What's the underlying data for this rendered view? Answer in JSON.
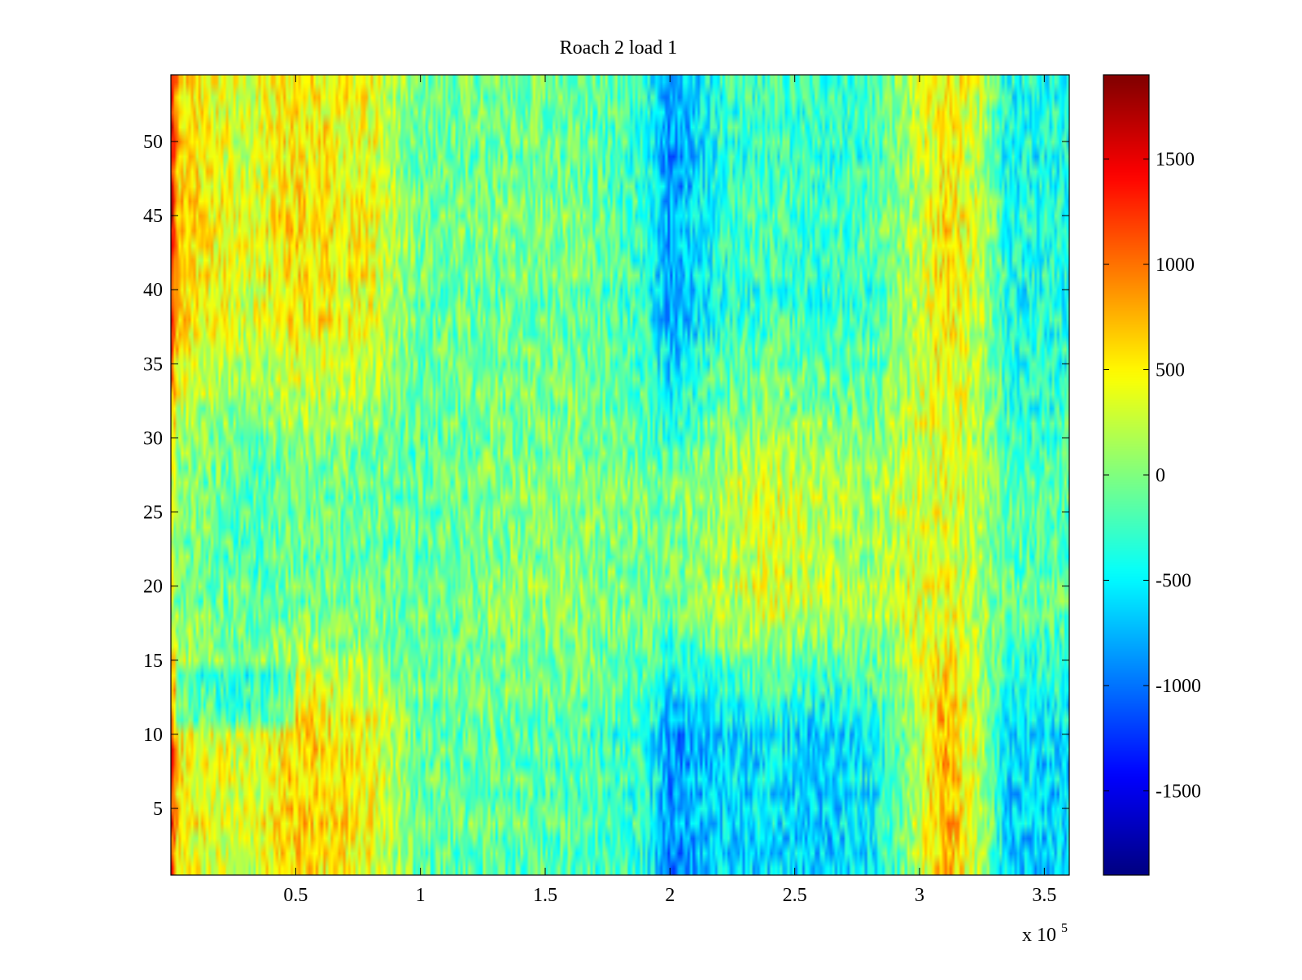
{
  "chart_data": {
    "type": "heatmap",
    "title": "Roach 2 load 1",
    "xlabel": "",
    "ylabel": "",
    "x_multiplier_label": "x 10",
    "x_multiplier_exponent": "5",
    "xlim": [
      0,
      3.6
    ],
    "ylim": [
      0.5,
      54.5
    ],
    "n_rows": 54,
    "x_ticks": [
      {
        "value": 0.5,
        "label": "0.5"
      },
      {
        "value": 1,
        "label": "1"
      },
      {
        "value": 1.5,
        "label": "1.5"
      },
      {
        "value": 2,
        "label": "2"
      },
      {
        "value": 2.5,
        "label": "2.5"
      },
      {
        "value": 3,
        "label": "3"
      },
      {
        "value": 3.5,
        "label": "3.5"
      }
    ],
    "y_ticks": [
      {
        "value": 5,
        "label": "5"
      },
      {
        "value": 10,
        "label": "10"
      },
      {
        "value": 15,
        "label": "15"
      },
      {
        "value": 20,
        "label": "20"
      },
      {
        "value": 25,
        "label": "25"
      },
      {
        "value": 30,
        "label": "30"
      },
      {
        "value": 35,
        "label": "35"
      },
      {
        "value": 40,
        "label": "40"
      },
      {
        "value": 45,
        "label": "45"
      },
      {
        "value": 50,
        "label": "50"
      }
    ],
    "colorbar": {
      "colormap": "jet",
      "clim": [
        -1900,
        1900
      ],
      "ticks": [
        {
          "value": 1500,
          "label": "1500"
        },
        {
          "value": 1000,
          "label": "1000"
        },
        {
          "value": 500,
          "label": "500"
        },
        {
          "value": 0,
          "label": "0"
        },
        {
          "value": -500,
          "label": "-500"
        },
        {
          "value": -1000,
          "label": "-1000"
        },
        {
          "value": -1500,
          "label": "-1500"
        }
      ]
    },
    "approx_column_means": {
      "x": [
        0.0,
        0.03,
        0.3,
        0.5,
        0.8,
        1.0,
        1.3,
        1.6,
        1.9,
        2.0,
        2.2,
        2.4,
        2.6,
        2.8,
        2.95,
        3.1,
        3.25,
        3.35,
        3.6
      ],
      "top_band": [
        1500,
        600,
        300,
        550,
        400,
        -100,
        -50,
        -50,
        -300,
        -900,
        -350,
        -250,
        -300,
        -250,
        100,
        550,
        200,
        -400,
        -400
      ],
      "middle_band": [
        250,
        0,
        -200,
        -100,
        -100,
        -150,
        0,
        50,
        -50,
        -50,
        150,
        350,
        200,
        100,
        300,
        350,
        150,
        -150,
        -150
      ],
      "bottom_band": [
        1300,
        500,
        300,
        650,
        450,
        -100,
        -100,
        -150,
        -300,
        -900,
        -600,
        -550,
        -650,
        -500,
        0,
        800,
        200,
        -600,
        -600
      ]
    }
  }
}
